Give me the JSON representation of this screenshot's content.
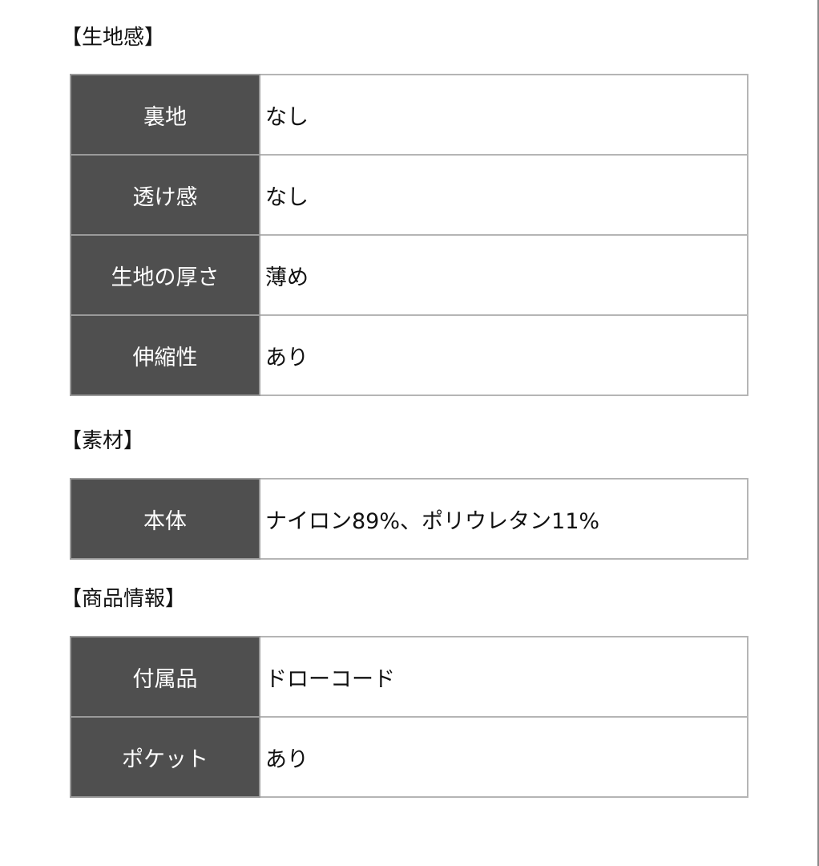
{
  "sections": [
    {
      "heading": "【生地感】",
      "rows": [
        {
          "label": "裏地",
          "value": "なし"
        },
        {
          "label": "透け感",
          "value": "なし"
        },
        {
          "label": "生地の厚さ",
          "value": "薄め"
        },
        {
          "label": "伸縮性",
          "value": "あり"
        }
      ]
    },
    {
      "heading": "【素材】",
      "rows": [
        {
          "label": "本体",
          "value": "ナイロン89%、ポリウレタン11%"
        }
      ]
    },
    {
      "heading": "【商品情報】",
      "rows": [
        {
          "label": "付属品",
          "value": "ドローコード"
        },
        {
          "label": "ポケット",
          "value": "あり"
        }
      ]
    }
  ]
}
